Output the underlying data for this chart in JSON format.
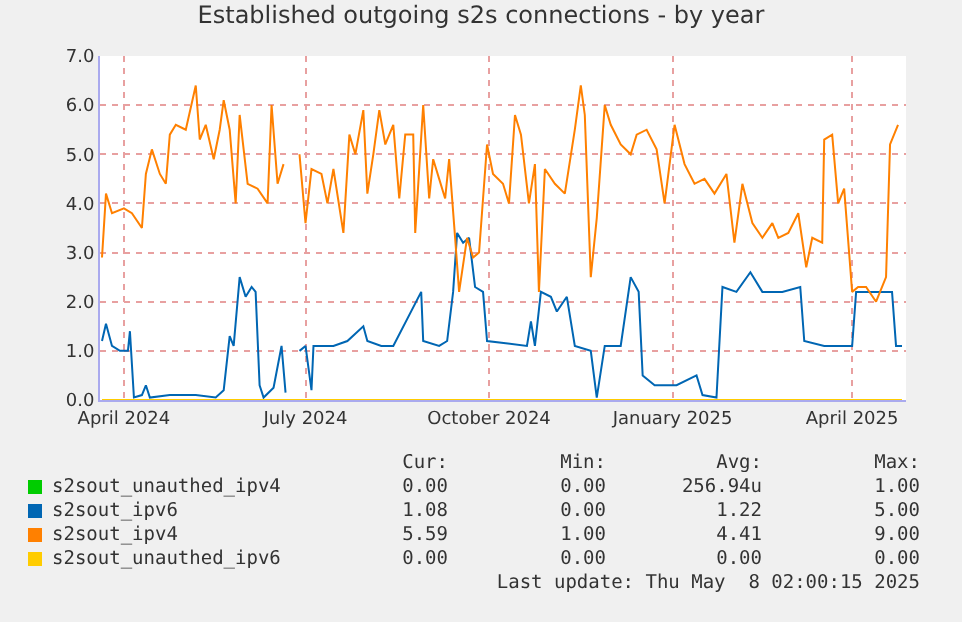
{
  "chart_data": {
    "type": "line",
    "title": "Established outgoing s2s connections - by year",
    "xlim": [
      "2024-03-20",
      "2025-04-28"
    ],
    "xticks": [
      {
        "value": "2024-04-01",
        "label": "April 2024"
      },
      {
        "value": "2024-07-01",
        "label": "July 2024"
      },
      {
        "value": "2024-10-01",
        "label": "October 2024"
      },
      {
        "value": "2025-01-01",
        "label": "January 2025"
      },
      {
        "value": "2025-04-01",
        "label": "April 2025"
      }
    ],
    "ylim": [
      0,
      7
    ],
    "yticks": [
      {
        "value": 0,
        "label": "0.0"
      },
      {
        "value": 1,
        "label": "1.0"
      },
      {
        "value": 2,
        "label": "2.0"
      },
      {
        "value": 3,
        "label": "3.0"
      },
      {
        "value": 4,
        "label": "4.0"
      },
      {
        "value": 5,
        "label": "5.0"
      },
      {
        "value": 6,
        "label": "6.0"
      },
      {
        "value": 7,
        "label": "7.0"
      }
    ],
    "grid": true,
    "legend": "bottom",
    "marker": "none",
    "line_style": "solid",
    "series": [
      {
        "name": "s2sout_unauthed_ipv4",
        "color": "#00cc00"
      },
      {
        "name": "s2sout_ipv6",
        "color": "#0066b3",
        "x": [
          "2024-03-21",
          "2024-03-23",
          "2024-03-26",
          "2024-03-30",
          "2024-04-03",
          "2024-04-04",
          "2024-04-06",
          "2024-04-10",
          "2024-04-12",
          "2024-04-14",
          "2024-04-24",
          "2024-05-07",
          "2024-05-17",
          "2024-05-21",
          "2024-05-24",
          "2024-05-26",
          "2024-05-29",
          "2024-06-01",
          "2024-06-04",
          "2024-06-06",
          "2024-06-08",
          "2024-06-10",
          "2024-06-15",
          "2024-06-19",
          "2024-06-21",
          "2024-06-24",
          "2024-06-28",
          "2024-07-01",
          "2024-07-04",
          "2024-07-05",
          "2024-07-15",
          "2024-07-22",
          "2024-07-30",
          "2024-08-01",
          "2024-08-08",
          "2024-08-14",
          "2024-08-28",
          "2024-08-29",
          "2024-09-06",
          "2024-09-10",
          "2024-09-13",
          "2024-09-15",
          "2024-09-18",
          "2024-09-21",
          "2024-09-24",
          "2024-09-28",
          "2024-09-30",
          "2024-10-20",
          "2024-10-22",
          "2024-10-24",
          "2024-10-27",
          "2024-11-01",
          "2024-11-04",
          "2024-11-09",
          "2024-11-13",
          "2024-11-21",
          "2024-11-24",
          "2024-11-28",
          "2024-12-06",
          "2024-12-11",
          "2024-12-15",
          "2024-12-17",
          "2024-12-23",
          "2025-01-03",
          "2025-01-13",
          "2025-01-16",
          "2025-01-23",
          "2025-01-26",
          "2025-02-02",
          "2025-02-09",
          "2025-02-15",
          "2025-02-25",
          "2025-03-06",
          "2025-03-08",
          "2025-03-18",
          "2025-03-27",
          "2025-04-01",
          "2025-04-03",
          "2025-04-13",
          "2025-04-21",
          "2025-04-23",
          "2025-04-26"
        ],
        "values": [
          1.2,
          1.55,
          1.1,
          1.0,
          1.0,
          1.4,
          0.05,
          0.1,
          0.3,
          0.05,
          0.1,
          0.1,
          0.05,
          0.2,
          1.3,
          1.1,
          2.5,
          2.1,
          2.3,
          2.2,
          0.3,
          0.05,
          0.25,
          1.1,
          0.15,
          null,
          1.0,
          1.1,
          0.2,
          1.1,
          1.1,
          1.2,
          1.5,
          1.2,
          1.1,
          1.1,
          2.2,
          1.2,
          1.1,
          1.2,
          2.2,
          3.4,
          3.2,
          3.3,
          2.3,
          2.2,
          1.2,
          1.1,
          1.6,
          1.1,
          2.2,
          2.1,
          1.8,
          2.1,
          1.1,
          1.0,
          0.05,
          1.1,
          1.1,
          2.5,
          2.2,
          0.5,
          0.3,
          0.3,
          0.5,
          0.1,
          0.05,
          2.3,
          2.2,
          2.6,
          2.2,
          2.2,
          2.3,
          1.2,
          1.1,
          1.1,
          1.1,
          2.2,
          2.2,
          2.2,
          1.1,
          1.1
        ]
      },
      {
        "name": "s2sout_ipv4",
        "color": "#ff8000",
        "x": [
          "2024-03-21",
          "2024-03-23",
          "2024-03-26",
          "2024-04-01",
          "2024-04-05",
          "2024-04-10",
          "2024-04-12",
          "2024-04-15",
          "2024-04-19",
          "2024-04-22",
          "2024-04-24",
          "2024-04-27",
          "2024-05-02",
          "2024-05-07",
          "2024-05-09",
          "2024-05-12",
          "2024-05-16",
          "2024-05-19",
          "2024-05-21",
          "2024-05-24",
          "2024-05-27",
          "2024-05-29",
          "2024-06-02",
          "2024-06-07",
          "2024-06-12",
          "2024-06-14",
          "2024-06-17",
          "2024-06-20",
          "2024-06-24",
          "2024-06-28",
          "2024-07-01",
          "2024-07-04",
          "2024-07-09",
          "2024-07-12",
          "2024-07-15",
          "2024-07-20",
          "2024-07-23",
          "2024-07-26",
          "2024-07-30",
          "2024-08-01",
          "2024-08-04",
          "2024-08-07",
          "2024-08-10",
          "2024-08-14",
          "2024-08-17",
          "2024-08-20",
          "2024-08-24",
          "2024-08-25",
          "2024-08-29",
          "2024-09-01",
          "2024-09-03",
          "2024-09-06",
          "2024-09-09",
          "2024-09-11",
          "2024-09-14",
          "2024-09-16",
          "2024-09-20",
          "2024-09-23",
          "2024-09-26",
          "2024-09-30",
          "2024-10-03",
          "2024-10-08",
          "2024-10-11",
          "2024-10-14",
          "2024-10-17",
          "2024-10-21",
          "2024-10-24",
          "2024-10-26",
          "2024-10-29",
          "2024-11-03",
          "2024-11-08",
          "2024-11-13",
          "2024-11-16",
          "2024-11-18",
          "2024-11-21",
          "2024-11-24",
          "2024-11-28",
          "2024-12-01",
          "2024-12-06",
          "2024-12-11",
          "2024-12-14",
          "2024-12-19",
          "2024-12-24",
          "2024-12-28",
          "2025-01-02",
          "2025-01-07",
          "2025-01-12",
          "2025-01-17",
          "2025-01-22",
          "2025-01-28",
          "2025-02-01",
          "2025-02-05",
          "2025-02-10",
          "2025-02-15",
          "2025-02-20",
          "2025-02-23",
          "2025-02-28",
          "2025-03-05",
          "2025-03-09",
          "2025-03-12",
          "2025-03-17",
          "2025-03-18",
          "2025-03-22",
          "2025-03-25",
          "2025-03-28",
          "2025-04-01",
          "2025-04-04",
          "2025-04-08",
          "2025-04-13",
          "2025-04-18",
          "2025-04-20",
          "2025-04-24"
        ],
        "values": [
          2.9,
          4.2,
          3.8,
          3.9,
          3.8,
          3.5,
          4.6,
          5.1,
          4.6,
          4.4,
          5.4,
          5.6,
          5.5,
          6.4,
          5.3,
          5.6,
          4.9,
          5.5,
          6.1,
          5.5,
          4.0,
          5.8,
          4.4,
          4.3,
          4.0,
          6.0,
          4.4,
          4.8,
          null,
          5.0,
          3.6,
          4.7,
          4.6,
          4.0,
          4.7,
          3.4,
          5.4,
          5.0,
          5.9,
          4.2,
          5.0,
          5.9,
          5.2,
          5.6,
          4.1,
          5.4,
          5.4,
          3.4,
          6.0,
          4.1,
          4.9,
          4.5,
          4.1,
          4.9,
          3.3,
          2.2,
          3.3,
          2.9,
          3.0,
          5.2,
          4.6,
          4.4,
          4.0,
          5.8,
          5.4,
          4.0,
          4.8,
          2.2,
          4.7,
          4.4,
          4.2,
          5.5,
          6.4,
          5.8,
          2.5,
          3.7,
          6.0,
          5.6,
          5.2,
          5.0,
          5.4,
          5.5,
          5.1,
          4.0,
          5.6,
          4.8,
          4.4,
          4.5,
          4.2,
          4.6,
          3.2,
          4.4,
          3.6,
          3.3,
          3.6,
          3.3,
          3.4,
          3.8,
          2.7,
          3.3,
          3.2,
          5.3,
          5.4,
          4.0,
          4.3,
          2.2,
          2.3,
          2.3,
          2.0,
          2.5,
          5.2,
          5.6
        ]
      },
      {
        "name": "s2sout_unauthed_ipv6",
        "color": "#ffcc00",
        "x": [
          "2024-03-21",
          "2024-09-01",
          "2025-04-26"
        ],
        "values": [
          0,
          0,
          0
        ]
      }
    ],
    "annotations": [
      "Cur:",
      "Min:",
      "Avg:",
      "Max:",
      "0.00",
      "0.00",
      "256.94u",
      "1.00",
      "1.08",
      "0.00",
      "1.22",
      "5.00",
      "5.59",
      "1.00",
      "4.41",
      "9.00",
      "0.00",
      "0.00",
      "0.00",
      "0.00",
      "Last update: Thu May  8 02:00:15 2025"
    ]
  }
}
